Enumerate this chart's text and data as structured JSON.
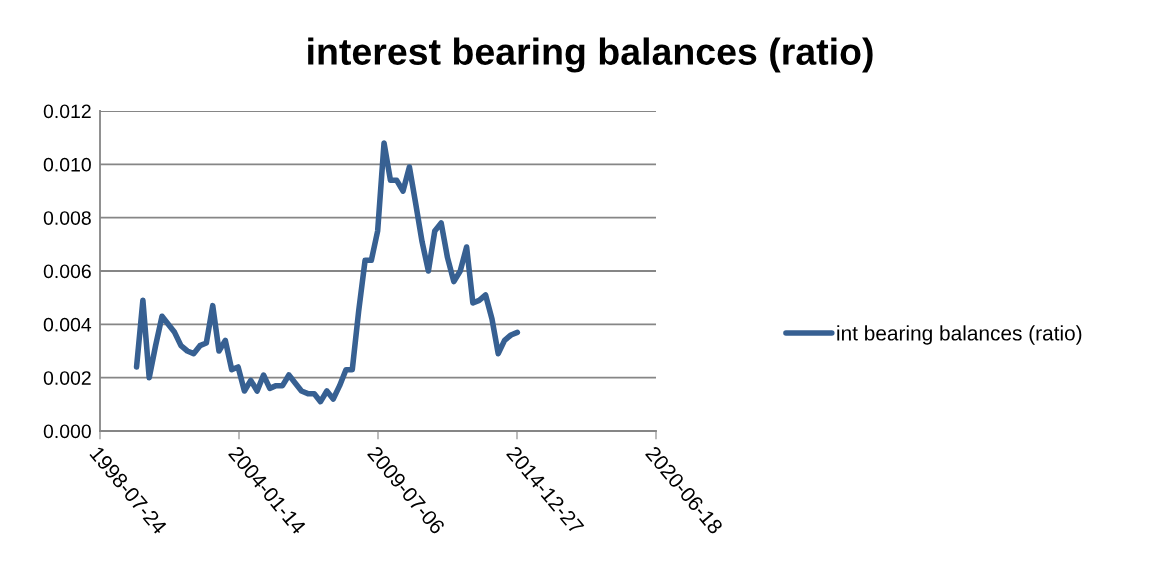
{
  "chart_data": {
    "type": "line",
    "title": "interest bearing balances (ratio)",
    "x": [
      "2000-01",
      "2000-04",
      "2000-07",
      "2000-10",
      "2001-01",
      "2001-04",
      "2001-07",
      "2001-10",
      "2002-01",
      "2002-04",
      "2002-07",
      "2002-10",
      "2003-01",
      "2003-04",
      "2003-07",
      "2003-10",
      "2004-01",
      "2004-04",
      "2004-07",
      "2004-10",
      "2005-01",
      "2005-04",
      "2005-07",
      "2005-10",
      "2006-01",
      "2006-04",
      "2006-07",
      "2006-10",
      "2007-01",
      "2007-04",
      "2007-07",
      "2007-10",
      "2008-01",
      "2008-04",
      "2008-07",
      "2008-10",
      "2009-01",
      "2009-04",
      "2009-07",
      "2009-10",
      "2010-01",
      "2010-04",
      "2010-07",
      "2010-10",
      "2011-01",
      "2011-04",
      "2011-07",
      "2011-10",
      "2012-01",
      "2012-04",
      "2012-07",
      "2012-10",
      "2013-01",
      "2013-04",
      "2013-07",
      "2013-10",
      "2014-01",
      "2014-04",
      "2014-07",
      "2014-10",
      "2015-01"
    ],
    "series": [
      {
        "name": "int bearing balances (ratio)",
        "color": "#376092",
        "values": [
          0.0024,
          0.0049,
          0.002,
          0.0032,
          0.0043,
          0.004,
          0.0037,
          0.0032,
          0.003,
          0.0029,
          0.0032,
          0.0033,
          0.0047,
          0.003,
          0.0034,
          0.0023,
          0.0024,
          0.0015,
          0.0019,
          0.0015,
          0.0021,
          0.0016,
          0.0017,
          0.0017,
          0.0021,
          0.0018,
          0.0015,
          0.0014,
          0.0014,
          0.0011,
          0.0015,
          0.0012,
          0.0017,
          0.0023,
          0.0023,
          0.0045,
          0.0064,
          0.0064,
          0.0075,
          0.0108,
          0.0094,
          0.0094,
          0.009,
          0.0099,
          0.0085,
          0.0071,
          0.006,
          0.0075,
          0.0078,
          0.0065,
          0.0056,
          0.006,
          0.0069,
          0.0048,
          0.0049,
          0.0051,
          0.0042,
          0.0029,
          0.0034,
          0.0036,
          0.0037
        ]
      }
    ],
    "xlim": [
      "1998-07-24",
      "2020-06-18"
    ],
    "xticks": [
      {
        "value": "1998-07-24",
        "label": "1998-07-24"
      },
      {
        "value": "2004-01-14",
        "label": "2004-01-14"
      },
      {
        "value": "2009-07-06",
        "label": "2009-07-06"
      },
      {
        "value": "2014-12-27",
        "label": "2014-12-27"
      },
      {
        "value": "2020-06-18",
        "label": "2020-06-18"
      }
    ],
    "ylim": [
      0,
      0.012
    ],
    "yticks": [
      {
        "value": 0,
        "label": "0.000"
      },
      {
        "value": 0.002,
        "label": "0.002"
      },
      {
        "value": 0.004,
        "label": "0.004"
      },
      {
        "value": 0.006,
        "label": "0.006"
      },
      {
        "value": 0.008,
        "label": "0.008"
      },
      {
        "value": 0.01,
        "label": "0.010"
      },
      {
        "value": 0.012,
        "label": "0.012"
      }
    ],
    "grid": "y",
    "legend": "right",
    "marker": "none",
    "line_style": "solid"
  }
}
